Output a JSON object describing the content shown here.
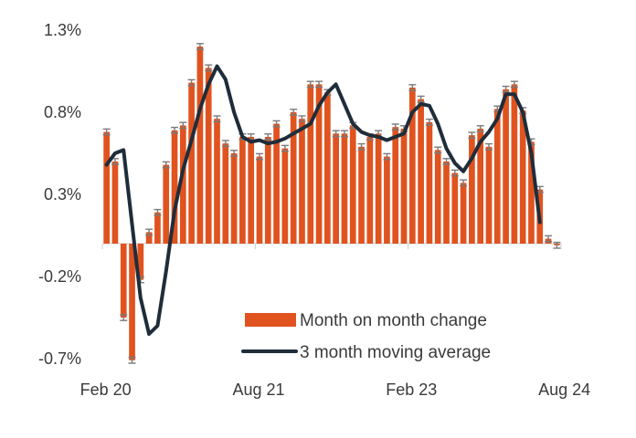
{
  "chart_data": {
    "type": "bar",
    "title": "",
    "xlabel": "",
    "ylabel": "",
    "ylim": [
      -0.7,
      1.3
    ],
    "y_ticks": [
      "1.3%",
      "0.8%",
      "0.3%",
      "-0.2%",
      "-0.7%"
    ],
    "y_tick_values": [
      1.3,
      0.8,
      0.3,
      -0.2,
      -0.7
    ],
    "x_tick_labels": [
      "Feb 20",
      "Aug 21",
      "Feb 23",
      "Aug 24"
    ],
    "x_tick_indices": [
      0,
      18,
      36,
      54
    ],
    "grid": false,
    "legend_position": "bottom-right",
    "colors": {
      "bar": "#E0531F",
      "line": "#1F2D3A",
      "error": "#7a7a7a",
      "axis": "#cccccc"
    },
    "series": [
      {
        "name": "Month on month change",
        "type": "bar",
        "values": [
          0.68,
          0.5,
          -0.45,
          -0.71,
          -0.22,
          0.07,
          0.19,
          0.48,
          0.69,
          0.72,
          0.98,
          1.2,
          1.07,
          0.76,
          0.61,
          0.55,
          0.65,
          0.65,
          0.53,
          0.65,
          0.73,
          0.58,
          0.8,
          0.76,
          0.97,
          0.97,
          0.92,
          0.67,
          0.67,
          0.72,
          0.59,
          0.65,
          0.67,
          0.53,
          0.71,
          0.7,
          0.95,
          0.88,
          0.74,
          0.57,
          0.5,
          0.43,
          0.37,
          0.66,
          0.7,
          0.59,
          0.82,
          0.94,
          0.97,
          0.81,
          0.62,
          0.33,
          0.03,
          -0.01
        ]
      },
      {
        "name": "3 month moving average",
        "type": "line",
        "values": [
          0.48,
          0.55,
          0.57,
          0.12,
          -0.33,
          -0.55,
          -0.5,
          -0.17,
          0.2,
          0.45,
          0.63,
          0.82,
          0.97,
          1.08,
          1.0,
          0.8,
          0.65,
          0.62,
          0.63,
          0.61,
          0.62,
          0.64,
          0.67,
          0.7,
          0.73,
          0.84,
          0.92,
          0.97,
          0.85,
          0.73,
          0.68,
          0.66,
          0.65,
          0.63,
          0.65,
          0.67,
          0.8,
          0.85,
          0.84,
          0.73,
          0.58,
          0.49,
          0.44,
          0.52,
          0.62,
          0.68,
          0.76,
          0.91,
          0.91,
          0.8,
          0.55,
          0.13
        ]
      }
    ]
  }
}
